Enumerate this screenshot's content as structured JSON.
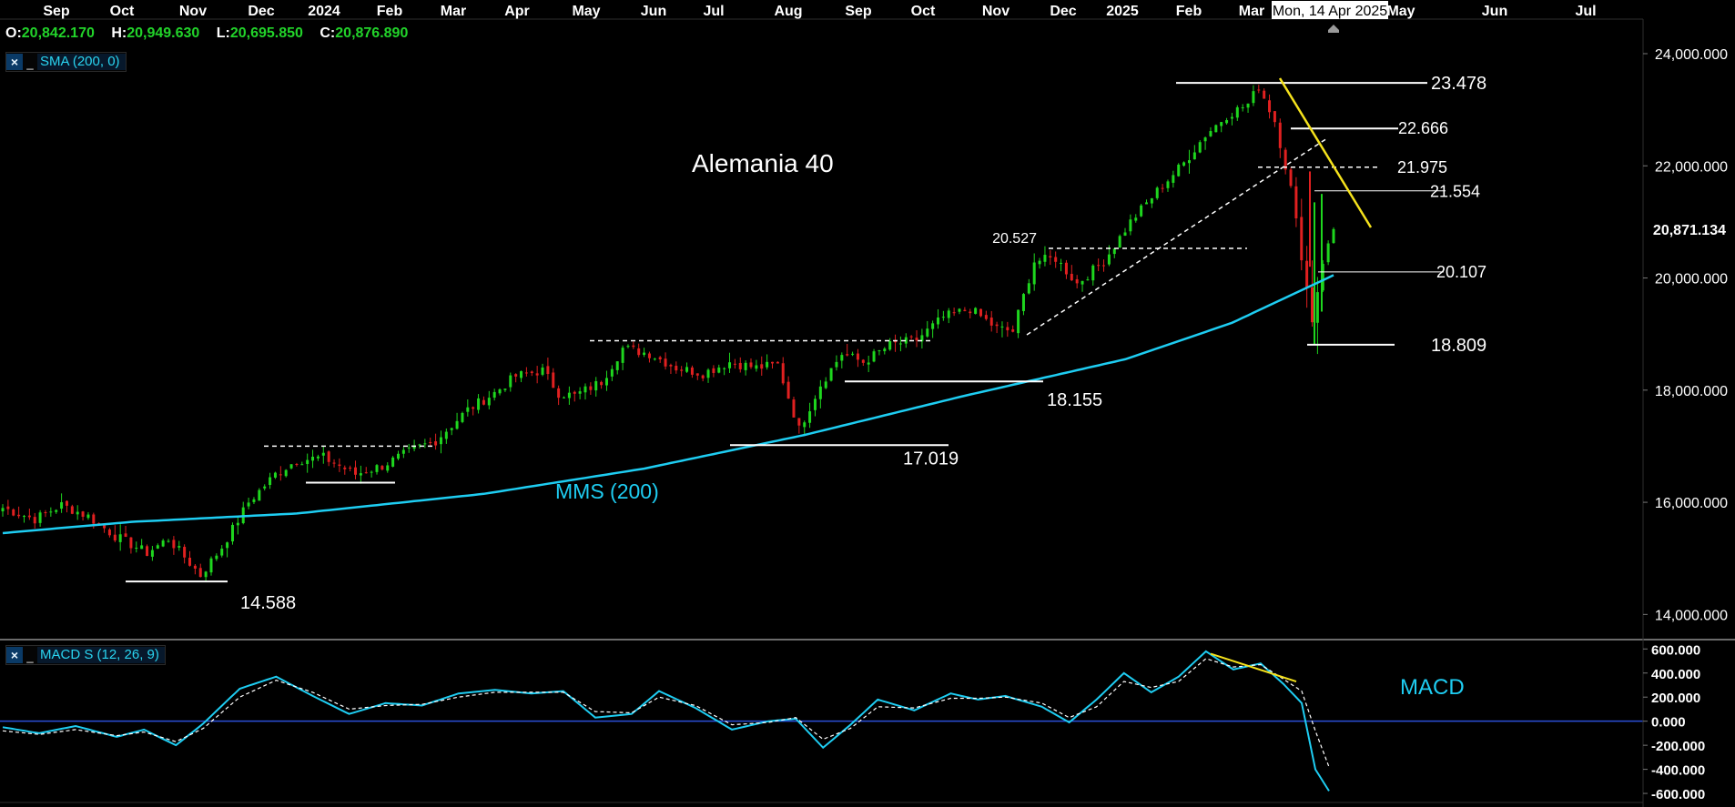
{
  "chart_data": [
    {
      "type": "candlestick",
      "title": "Alemania 40",
      "x_ticks": [
        "Sep",
        "Oct",
        "Nov",
        "Dec",
        "2024",
        "Feb",
        "Mar",
        "Apr",
        "May",
        "Jun",
        "Jul",
        "Aug",
        "Sep",
        "Oct",
        "Nov",
        "Dec",
        "2025",
        "Feb",
        "Mar",
        "May",
        "Jun",
        "Jul"
      ],
      "crosshair_label": "Mon, 14 Apr 2025",
      "ohlc": {
        "o_label": "O:",
        "o": "20,842.170",
        "h_label": "H:",
        "h": "20,949.630",
        "l_label": "L:",
        "l": "20,695.850",
        "c_label": "C:",
        "c": "20,876.890"
      },
      "indicator_label": "SMA (200, 0)",
      "y_ticks": [
        "24,000.000",
        "22,000.000",
        "20,000.000",
        "18,000.000",
        "16,000.000",
        "14,000.000"
      ],
      "y_tick_values": [
        24000,
        22000,
        20000,
        18000,
        16000,
        14000
      ],
      "ylim": [
        13600,
        24600
      ],
      "last_price_label": "20,871.134",
      "last_price": 20871,
      "sma_label": "MMS (200)",
      "annotations": [
        {
          "id": "a23478",
          "text": "23.478",
          "value": 23478
        },
        {
          "id": "a22666",
          "text": "22.666",
          "value": 22666
        },
        {
          "id": "a21975",
          "text": "21.975",
          "value": 21975
        },
        {
          "id": "a21554",
          "text": "21.554",
          "value": 21554
        },
        {
          "id": "a20527",
          "text": "20.527",
          "value": 20527
        },
        {
          "id": "a20107",
          "text": "20.107",
          "value": 20107
        },
        {
          "id": "a18809",
          "text": "18.809",
          "value": 18809
        },
        {
          "id": "a18155",
          "text": "18.155",
          "value": 18155
        },
        {
          "id": "a17019",
          "text": "17.019",
          "value": 17019
        },
        {
          "id": "a14588",
          "text": "14.588",
          "value": 14588
        }
      ],
      "price_anchors": [
        [
          0,
          15900
        ],
        [
          6,
          15700
        ],
        [
          11,
          15950
        ],
        [
          16,
          15750
        ],
        [
          21,
          15400
        ],
        [
          27,
          15100
        ],
        [
          31,
          15350
        ],
        [
          37,
          14700
        ],
        [
          41,
          15200
        ],
        [
          46,
          16000
        ],
        [
          51,
          16500
        ],
        [
          55,
          16750
        ],
        [
          60,
          16800
        ],
        [
          66,
          16500
        ],
        [
          71,
          16650
        ],
        [
          77,
          16950
        ],
        [
          81,
          17100
        ],
        [
          87,
          17650
        ],
        [
          92,
          17950
        ],
        [
          96,
          18250
        ],
        [
          101,
          18350
        ],
        [
          104,
          17950
        ],
        [
          107,
          17900
        ],
        [
          112,
          18150
        ],
        [
          116,
          18750
        ],
        [
          121,
          18650
        ],
        [
          126,
          18400
        ],
        [
          131,
          18300
        ],
        [
          136,
          18500
        ],
        [
          141,
          18400
        ],
        [
          145,
          18450
        ],
        [
          149,
          17300
        ],
        [
          153,
          18100
        ],
        [
          157,
          18650
        ],
        [
          161,
          18500
        ],
        [
          166,
          18800
        ],
        [
          171,
          18900
        ],
        [
          176,
          19300
        ],
        [
          181,
          19450
        ],
        [
          186,
          19100
        ],
        [
          189,
          19050
        ],
        [
          193,
          20300
        ],
        [
          197,
          20350
        ],
        [
          201,
          19900
        ],
        [
          206,
          20300
        ],
        [
          211,
          21000
        ],
        [
          216,
          21550
        ],
        [
          221,
          22050
        ],
        [
          225,
          22550
        ],
        [
          229,
          22900
        ],
        [
          233,
          23100
        ],
        [
          235,
          23420
        ],
        [
          238,
          22800
        ],
        [
          241,
          21600
        ],
        [
          243,
          20400
        ],
        [
          245,
          19250
        ],
        [
          247,
          20300
        ],
        [
          249,
          20850
        ]
      ],
      "sma_anchors": [
        [
          0,
          15450
        ],
        [
          24,
          15650
        ],
        [
          55,
          15800
        ],
        [
          90,
          16150
        ],
        [
          120,
          16600
        ],
        [
          150,
          17200
        ],
        [
          180,
          17900
        ],
        [
          210,
          18550
        ],
        [
          230,
          19200
        ],
        [
          249,
          20050
        ]
      ]
    },
    {
      "type": "line",
      "title": "MACD",
      "indicator_label": "MACD S (12, 26, 9)",
      "y_ticks": [
        "600.000",
        "400.000",
        "200.000",
        "0.000",
        "-200.000",
        "-400.000",
        "-600.000"
      ],
      "y_tick_values": [
        600,
        400,
        200,
        0,
        -200,
        -400,
        -600
      ],
      "ylim": [
        -660,
        640
      ],
      "series": [
        {
          "anchors": [
            [
              0,
              -50
            ],
            [
              8,
              -100
            ],
            [
              16,
              -40
            ],
            [
              25,
              -130
            ],
            [
              31,
              -70
            ],
            [
              38,
              -200
            ],
            [
              44,
              -20
            ],
            [
              52,
              270
            ],
            [
              60,
              370
            ],
            [
              68,
              210
            ],
            [
              76,
              60
            ],
            [
              84,
              150
            ],
            [
              92,
              130
            ],
            [
              100,
              230
            ],
            [
              108,
              260
            ],
            [
              116,
              230
            ],
            [
              123,
              250
            ],
            [
              130,
              30
            ],
            [
              138,
              60
            ],
            [
              144,
              250
            ],
            [
              152,
              110
            ],
            [
              160,
              -70
            ],
            [
              168,
              0
            ],
            [
              174,
              20
            ],
            [
              180,
              -220
            ],
            [
              186,
              -30
            ],
            [
              192,
              180
            ],
            [
              200,
              90
            ],
            [
              208,
              230
            ],
            [
              214,
              180
            ],
            [
              220,
              210
            ],
            [
              228,
              120
            ],
            [
              234,
              -10
            ],
            [
              240,
              180
            ],
            [
              246,
              400
            ],
            [
              252,
              240
            ],
            [
              258,
              370
            ],
            [
              264,
              580
            ],
            [
              270,
              430
            ],
            [
              276,
              480
            ],
            [
              281,
              310
            ],
            [
              285,
              150
            ],
            [
              288,
              -400
            ],
            [
              291,
              -580
            ]
          ]
        },
        {
          "anchors": [
            [
              0,
              -80
            ],
            [
              8,
              -110
            ],
            [
              16,
              -70
            ],
            [
              25,
              -120
            ],
            [
              31,
              -90
            ],
            [
              38,
              -170
            ],
            [
              44,
              -60
            ],
            [
              52,
              200
            ],
            [
              60,
              340
            ],
            [
              68,
              240
            ],
            [
              76,
              100
            ],
            [
              84,
              130
            ],
            [
              92,
              140
            ],
            [
              100,
              200
            ],
            [
              108,
              240
            ],
            [
              116,
              240
            ],
            [
              123,
              240
            ],
            [
              130,
              80
            ],
            [
              138,
              70
            ],
            [
              144,
              200
            ],
            [
              152,
              130
            ],
            [
              160,
              -30
            ],
            [
              168,
              -10
            ],
            [
              174,
              30
            ],
            [
              180,
              -150
            ],
            [
              186,
              -60
            ],
            [
              192,
              120
            ],
            [
              200,
              110
            ],
            [
              208,
              190
            ],
            [
              214,
              190
            ],
            [
              220,
              200
            ],
            [
              228,
              150
            ],
            [
              234,
              30
            ],
            [
              240,
              120
            ],
            [
              246,
              330
            ],
            [
              252,
              280
            ],
            [
              258,
              330
            ],
            [
              264,
              520
            ],
            [
              270,
              450
            ],
            [
              276,
              470
            ],
            [
              281,
              350
            ],
            [
              285,
              250
            ],
            [
              288,
              -80
            ],
            [
              291,
              -380
            ]
          ]
        }
      ]
    }
  ]
}
